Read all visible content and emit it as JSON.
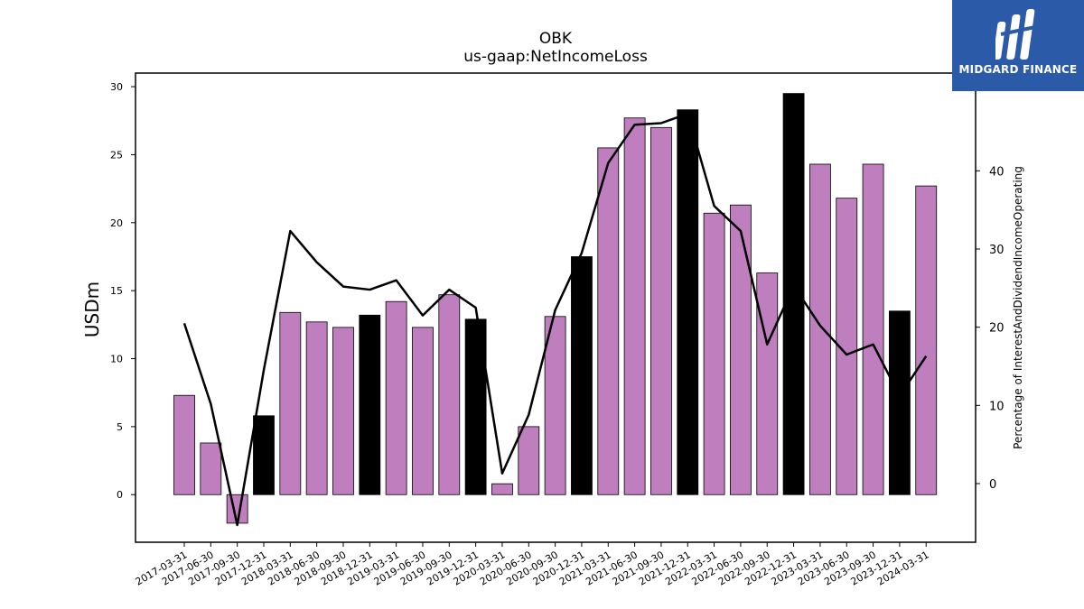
{
  "chart_data": {
    "type": "bar",
    "title": "OBK",
    "subtitle": "us-gaap:NetIncomeLoss",
    "ylabel": "USDm",
    "y2label": "Percentage of InterestAndDividendIncomeOperating",
    "ylim": [
      -3.5,
      31
    ],
    "y2lim": [
      -7.5,
      52.5
    ],
    "yticks": [
      0,
      5,
      10,
      15,
      20,
      25,
      30
    ],
    "y2ticks": [
      0,
      10,
      20,
      30,
      40
    ],
    "categories": [
      "2017-03-31",
      "2017-06-30",
      "2017-09-30",
      "2017-12-31",
      "2018-03-31",
      "2018-06-30",
      "2018-09-30",
      "2018-12-31",
      "2019-03-31",
      "2019-06-30",
      "2019-09-30",
      "2019-12-31",
      "2020-03-31",
      "2020-06-30",
      "2020-09-30",
      "2020-12-31",
      "2021-03-31",
      "2021-06-30",
      "2021-09-30",
      "2021-12-31",
      "2022-03-31",
      "2022-06-30",
      "2022-09-30",
      "2022-12-31",
      "2023-03-31",
      "2023-06-30",
      "2023-09-30",
      "2023-12-31",
      "2024-03-31"
    ],
    "series": [
      {
        "type": "bar",
        "values": [
          7.3,
          3.8,
          -2.1,
          5.8,
          13.4,
          12.7,
          12.3,
          13.2,
          14.2,
          12.3,
          14.7,
          12.9,
          0.8,
          5.0,
          13.1,
          17.5,
          25.5,
          27.7,
          27.0,
          28.3,
          20.7,
          21.3,
          16.3,
          29.5,
          24.3,
          21.8,
          24.3,
          13.5,
          22.7
        ],
        "colors": [
          "#bf7fbf",
          "#bf7fbf",
          "#bf7fbf",
          "#000000",
          "#bf7fbf",
          "#bf7fbf",
          "#bf7fbf",
          "#000000",
          "#bf7fbf",
          "#bf7fbf",
          "#bf7fbf",
          "#000000",
          "#bf7fbf",
          "#bf7fbf",
          "#bf7fbf",
          "#000000",
          "#bf7fbf",
          "#bf7fbf",
          "#bf7fbf",
          "#000000",
          "#bf7fbf",
          "#bf7fbf",
          "#bf7fbf",
          "#000000",
          "#bf7fbf",
          "#bf7fbf",
          "#bf7fbf",
          "#000000",
          "#bf7fbf"
        ]
      },
      {
        "type": "line",
        "axis": "right",
        "color": "#000000",
        "values": [
          20.5,
          10.2,
          -5.3,
          14.5,
          32.3,
          28.3,
          25.2,
          24.8,
          26.0,
          21.5,
          24.8,
          22.5,
          1.3,
          8.8,
          22.2,
          29.5,
          41.0,
          45.9,
          46.1,
          47.3,
          35.5,
          32.3,
          17.8,
          25.3,
          20.2,
          16.5,
          17.8,
          11.2,
          16.3
        ]
      }
    ]
  },
  "logo": {
    "text": "MIDGARD FINANCE"
  }
}
